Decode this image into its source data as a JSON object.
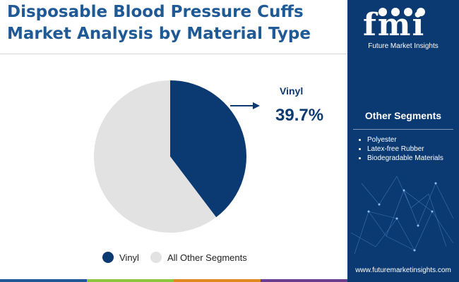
{
  "header": {
    "title_line1": "Disposable Blood Pressure Cuffs",
    "title_line2": "Market Analysis by Material Type"
  },
  "brand": {
    "logo_text": "fmi",
    "logo_subtitle": "Future Market Insights",
    "url": "www.futuremarketinsights.com"
  },
  "other_segments": {
    "title": "Other Segments",
    "items": [
      "Polyester",
      "Latex-free Rubber",
      "Biodegradable Materials"
    ]
  },
  "chart_data": {
    "type": "pie",
    "title": "",
    "slices": [
      {
        "label": "Vinyl",
        "value": 39.7,
        "color": "#0b3a72"
      },
      {
        "label": "All Other Segments",
        "value": 60.3,
        "color": "#e2e2e2"
      }
    ],
    "callout": {
      "label": "Vinyl",
      "value_text": "39.7%"
    },
    "legend": {
      "position": "bottom",
      "entries": [
        "Vinyl",
        "All Other Segments"
      ]
    }
  },
  "colors": {
    "primary": "#0b3a72",
    "title": "#1f5a96",
    "other": "#e2e2e2",
    "bar": [
      "#1f5a96",
      "#8dc63f",
      "#e08a1e",
      "#6a3d8f"
    ]
  }
}
